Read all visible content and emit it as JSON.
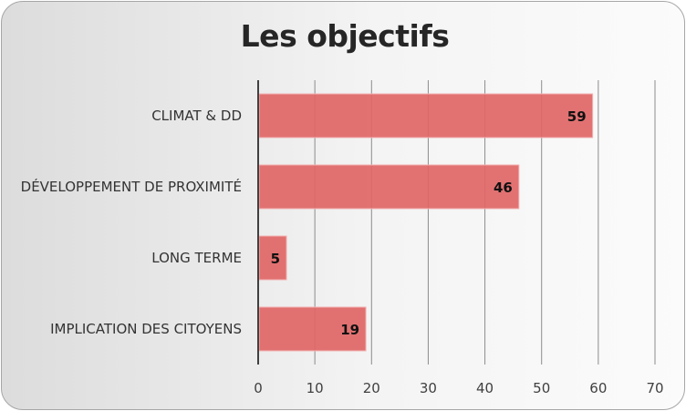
{
  "chart_data": {
    "type": "bar",
    "orientation": "horizontal",
    "title": "Les objectifs",
    "categories": [
      "CLIMAT & DD",
      "DÉVELOPPEMENT DE PROXIMITÉ",
      "LONG TERME",
      "IMPLICATION DES CITOYENS"
    ],
    "values": [
      59,
      46,
      5,
      19
    ],
    "xlim": [
      0,
      70
    ],
    "x_ticks": [
      "0",
      "10",
      "20",
      "30",
      "40",
      "50",
      "60",
      "70"
    ],
    "xlabel": "",
    "ylabel": "",
    "grid": true,
    "data_labels": true,
    "bar_color": "#e06666",
    "bar_border_color": "#f3b3b3"
  }
}
